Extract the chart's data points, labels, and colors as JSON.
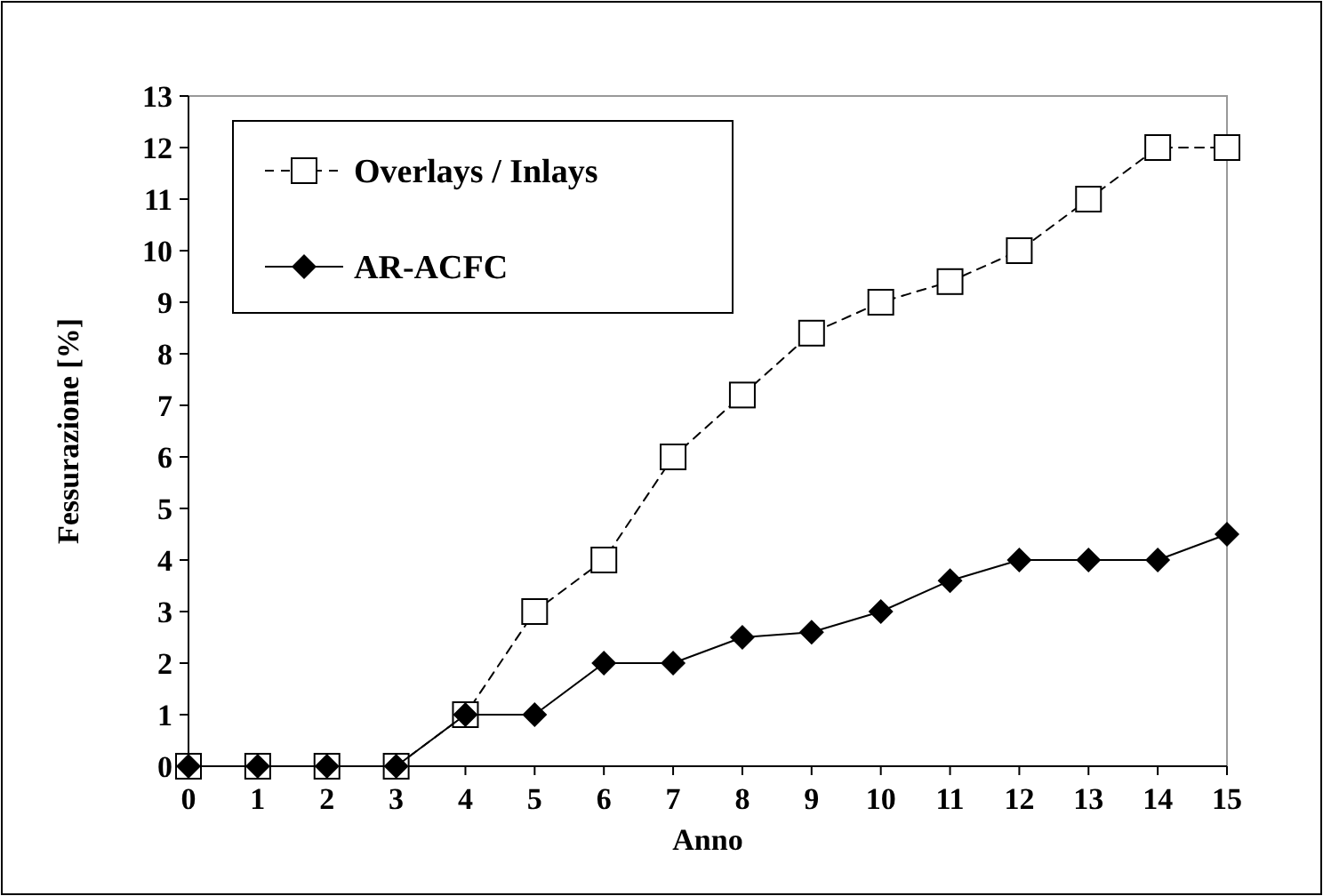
{
  "chart_data": {
    "type": "line",
    "xlabel": "Anno",
    "ylabel": "Fessurazione [%]",
    "x": [
      0,
      1,
      2,
      3,
      4,
      5,
      6,
      7,
      8,
      9,
      10,
      11,
      12,
      13,
      14,
      15
    ],
    "series": [
      {
        "name": "Overlays /  Inlays",
        "color": "#000000",
        "marker": "square",
        "line_style": "dashed",
        "values": [
          0,
          0,
          0,
          0,
          1,
          3,
          4,
          6,
          7.2,
          8.4,
          9,
          9.4,
          10,
          11,
          12,
          12
        ]
      },
      {
        "name": "AR-ACFC",
        "color": "#000000",
        "marker": "diamond",
        "line_style": "solid",
        "values": [
          0,
          0,
          0,
          0,
          1,
          1,
          2,
          2,
          2.5,
          2.6,
          3,
          3.6,
          4,
          4,
          4,
          4.5
        ]
      }
    ],
    "xlim": [
      0,
      15
    ],
    "xticks": [
      0,
      1,
      2,
      3,
      4,
      5,
      6,
      7,
      8,
      9,
      10,
      11,
      12,
      13,
      14,
      15
    ],
    "ylim": [
      0,
      13
    ],
    "yticks": [
      0,
      1,
      2,
      3,
      4,
      5,
      6,
      7,
      8,
      9,
      10,
      11,
      12,
      13
    ],
    "grid": false,
    "legend": "top left"
  }
}
